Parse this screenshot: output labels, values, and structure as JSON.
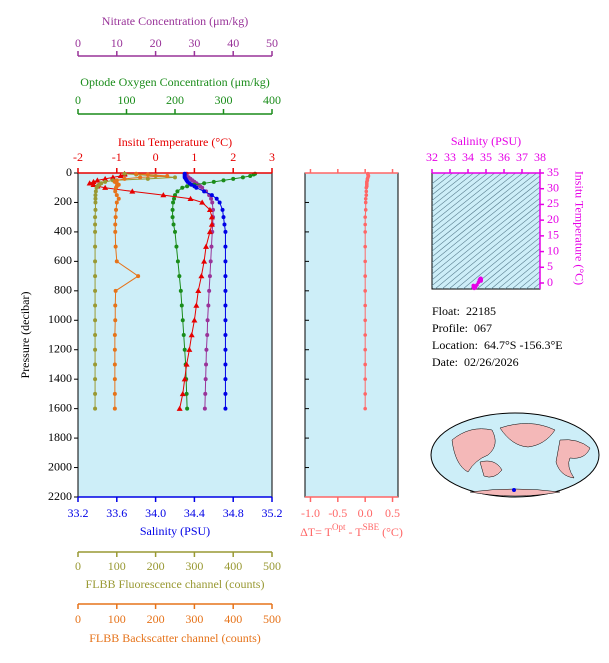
{
  "chart_data": [
    {
      "type": "line",
      "ylabel": "Pressure (decibar)",
      "y": [
        5,
        10,
        20,
        30,
        40,
        50,
        60,
        70,
        80,
        90,
        100,
        125,
        150,
        175,
        200,
        250,
        300,
        350,
        400,
        500,
        600,
        700,
        800,
        900,
        1000,
        1100,
        1200,
        1300,
        1400,
        1500,
        1600
      ],
      "ylim": [
        0,
        2200
      ],
      "yticks": [
        0,
        200,
        400,
        600,
        800,
        1000,
        1200,
        1400,
        1600,
        1800,
        2000,
        2200
      ],
      "background": "#cdeef8",
      "x_axes": [
        {
          "label": "Nitrate Concentration (μm/kg)",
          "xlim": [
            0,
            50
          ],
          "xticks": [
            0,
            10,
            20,
            30,
            40,
            50
          ],
          "color": "#993399",
          "marker": "circle",
          "values": [
            28,
            28,
            28,
            28.5,
            29,
            29.5,
            30,
            30.5,
            31,
            31.5,
            32,
            33,
            33.8,
            34.3,
            34.6,
            34.8,
            34.8,
            34.7,
            34.6,
            34.4,
            34.2,
            34,
            33.8,
            33.6,
            33.4,
            33.3,
            33.1,
            33,
            32.9,
            32.8,
            32.7
          ]
        },
        {
          "label": "Optode Oxygen Concentration (μm/kg)",
          "xlim": [
            0,
            400
          ],
          "xticks": [
            0,
            100,
            200,
            300,
            400
          ],
          "color": "#1a8c1a",
          "marker": "circle",
          "values": [
            365,
            362,
            355,
            340,
            320,
            300,
            280,
            260,
            240,
            225,
            215,
            205,
            200,
            198,
            196,
            195,
            195,
            197,
            200,
            203,
            206,
            209,
            212,
            214,
            216,
            218,
            220,
            222,
            223,
            224,
            225
          ]
        },
        {
          "label": "Insitu Temperature (°C)",
          "xlim": [
            -2,
            3
          ],
          "xticks": [
            -2,
            -1,
            0,
            1,
            2,
            3
          ],
          "color": "#e60000",
          "marker": "triangle",
          "values": [
            -0.8,
            -0.8,
            -0.9,
            -1.1,
            -1.3,
            -1.5,
            -1.6,
            -1.7,
            -1.6,
            -1.5,
            -1.3,
            -0.6,
            0.2,
            0.9,
            1.2,
            1.4,
            1.45,
            1.45,
            1.4,
            1.3,
            1.25,
            1.18,
            1.1,
            1.05,
            1.0,
            0.93,
            0.87,
            0.8,
            0.75,
            0.7,
            0.62
          ]
        },
        {
          "label": "Salinity (PSU)",
          "xlim": [
            33.2,
            35.2
          ],
          "xticks": [
            33.2,
            33.6,
            {
              "value": 34,
              "label": "34.0"
            },
            34.4,
            34.8,
            35.2
          ],
          "color": "#0000e6",
          "marker": "circle",
          "values": [
            34.3,
            34.3,
            34.3,
            34.3,
            34.31,
            34.32,
            34.33,
            34.35,
            34.37,
            34.4,
            34.42,
            34.5,
            34.58,
            34.63,
            34.66,
            34.69,
            34.7,
            34.71,
            34.72,
            34.72,
            34.72,
            34.72,
            34.72,
            34.72,
            34.72,
            34.72,
            34.72,
            34.72,
            34.72,
            34.72,
            34.72
          ]
        },
        {
          "label": "FLBB Fluorescence channel (counts)",
          "xlim": [
            0,
            500
          ],
          "xticks": [
            0,
            100,
            200,
            300,
            400,
            500
          ],
          "color": "#999933",
          "marker": "circle",
          "values": [
            120,
            150,
            200,
            250,
            180,
            90,
            70,
            60,
            55,
            50,
            48,
            46,
            45,
            45,
            45,
            45,
            44,
            44,
            44,
            44,
            44,
            44,
            44,
            44,
            44,
            44,
            44,
            44,
            44,
            44,
            44
          ]
        },
        {
          "label": "FLBB Backscatter channel (counts)",
          "xlim": [
            0,
            500
          ],
          "xticks": [
            0,
            100,
            200,
            300,
            400,
            500
          ],
          "color": "#e6731a",
          "marker": "circle",
          "values": [
            150,
            180,
            230,
            160,
            120,
            100,
            95,
            100,
            105,
            100,
            98,
            96,
            100,
            105,
            100,
            98,
            97,
            96,
            96,
            97,
            100,
            155,
            97,
            96,
            96,
            95,
            95,
            95,
            95,
            95,
            95
          ]
        }
      ]
    },
    {
      "type": "line",
      "xlabel_parts": [
        "ΔT= T",
        "Opt",
        " - T",
        "SBE",
        " (°C)"
      ],
      "xlim": [
        -1.1,
        0.6
      ],
      "xticks": [
        {
          "value": -1,
          "label": "-1.0"
        },
        {
          "value": -0.5,
          "label": "-0.5"
        },
        {
          "value": 0,
          "label": "0.0"
        },
        0.5
      ],
      "color": "#ff6666",
      "background": "#cdeef8",
      "values": [
        0.05,
        0.05,
        0.06,
        0.05,
        0.04,
        0.04,
        0.03,
        0.03,
        0.03,
        0.03,
        0.02,
        0.02,
        0.02,
        0.01,
        0.01,
        0.01,
        0,
        0,
        0,
        0,
        0,
        0,
        0,
        0,
        0,
        0,
        0,
        0,
        0,
        0,
        0
      ]
    },
    {
      "type": "scatter",
      "xlabel": "Salinity (PSU)",
      "ylabel": "Insitu Temperature (°C)",
      "xlim": [
        32,
        38
      ],
      "xticks": [
        32,
        33,
        34,
        35,
        36,
        37,
        38
      ],
      "ylim": [
        0,
        35
      ],
      "yticks": [
        0,
        5,
        10,
        15,
        20,
        25,
        30,
        35
      ],
      "color": "#e600e6",
      "background": "#cdeef8"
    }
  ],
  "info": [
    {
      "label": "Float:",
      "value": "22185"
    },
    {
      "label": "Profile:",
      "value": "067"
    },
    {
      "label": "Location:",
      "value": "64.7°S  -156.3°E"
    },
    {
      "label": "Date:",
      "value": "02/26/2026"
    }
  ]
}
